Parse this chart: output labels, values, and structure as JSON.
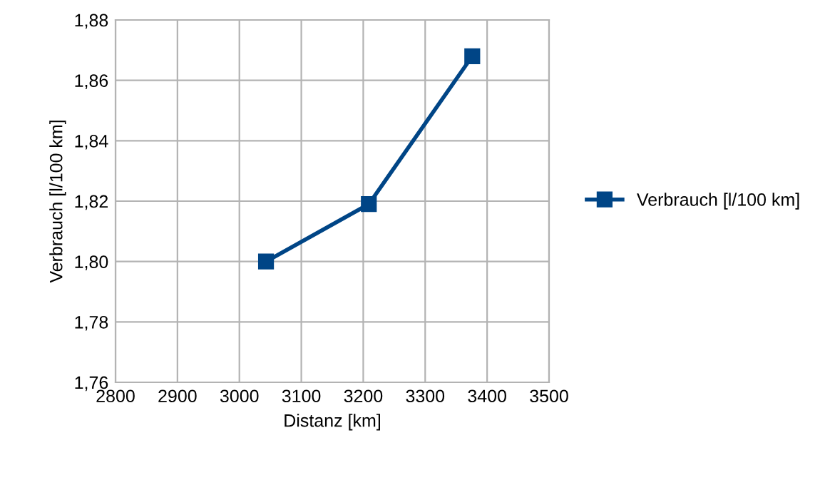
{
  "chart_data": {
    "type": "line",
    "xlabel": "Distanz [km]",
    "ylabel": "Verbrauch [l/100 km]",
    "x": [
      3043,
      3209,
      3376
    ],
    "series": [
      {
        "name": "Verbrauch [l/100 km]",
        "color": "#004586",
        "values": [
          1.8,
          1.819,
          1.868
        ]
      }
    ],
    "xlim": [
      2800,
      3500
    ],
    "xticks": [
      2800,
      2900,
      3000,
      3100,
      3200,
      3300,
      3400,
      3500
    ],
    "ylim": [
      1.76,
      1.88
    ],
    "yticks": [
      {
        "value": 1.76,
        "label": "1,76"
      },
      {
        "value": 1.78,
        "label": "1,78"
      },
      {
        "value": 1.8,
        "label": "1,80"
      },
      {
        "value": 1.82,
        "label": "1,82"
      },
      {
        "value": 1.84,
        "label": "1,84"
      },
      {
        "value": 1.86,
        "label": "1,86"
      },
      {
        "value": 1.88,
        "label": "1,88"
      }
    ],
    "grid": true,
    "legend": "right",
    "marker": "square",
    "line_style": "solid"
  }
}
